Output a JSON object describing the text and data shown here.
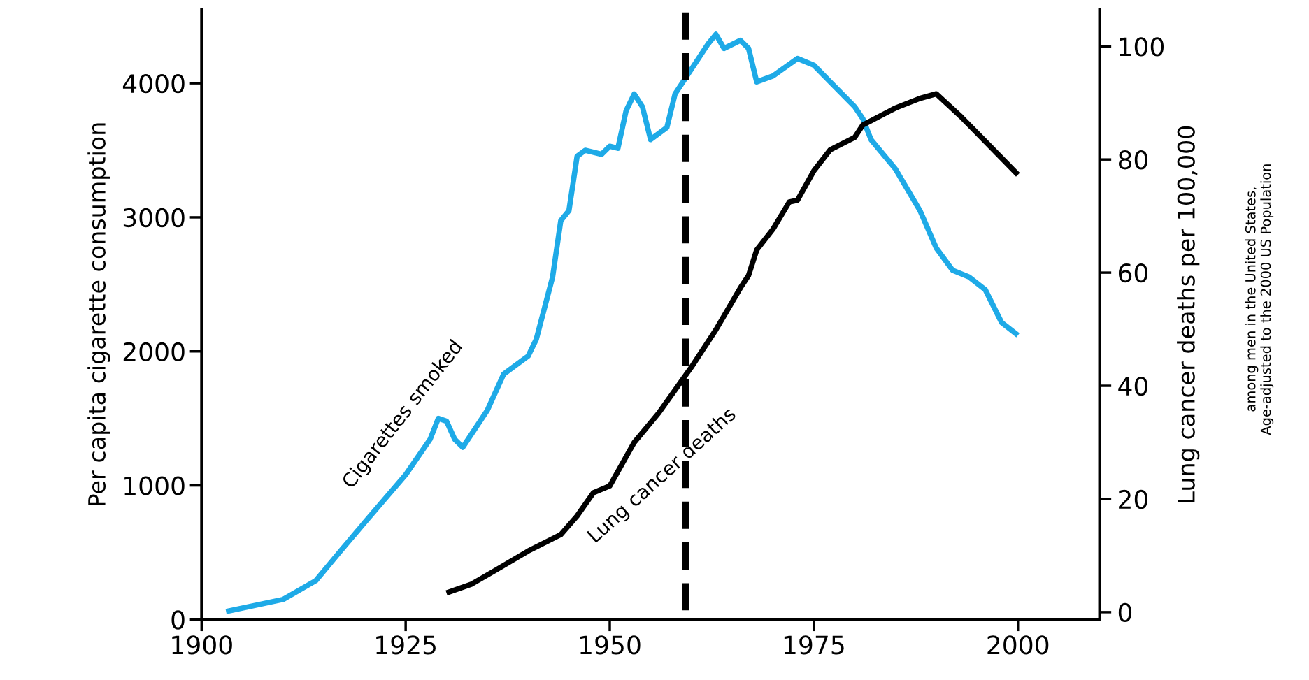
{
  "chart_data": {
    "type": "line",
    "xlabel": null,
    "ylabel": "Per capita cigarette consumption",
    "y2label": "Lung cancer deaths per 100,000",
    "annotations": [
      "Cigarettes smoked",
      "Lung cancer deaths",
      "among men in the United States,\nAge-adjusted to the 2000 US Population"
    ],
    "xlim": [
      1900,
      2010
    ],
    "ylim": [
      0,
      4550
    ],
    "y2lim": [
      -1.3,
      106.5
    ],
    "xticks": [
      1900,
      1925,
      1950,
      1975,
      2000
    ],
    "yticks": [
      0,
      1000,
      2000,
      3000,
      4000
    ],
    "y2ticks": [
      0,
      20,
      40,
      60,
      80,
      100
    ],
    "grid": false,
    "marker": "none",
    "line_style": "solid",
    "ref_lines": [
      {
        "axis": "x",
        "value": 1959.3,
        "label": null,
        "color": "#000000",
        "line_style": "dashed"
      }
    ],
    "series": [
      {
        "color": "#1eaae7",
        "x": [
          1903,
          1910,
          1914,
          1917,
          1920,
          1925,
          1928,
          1929,
          1930,
          1931,
          1932,
          1935,
          1937,
          1940,
          1941,
          1943,
          1944,
          1945,
          1946,
          1947,
          1949,
          1950,
          1951,
          1952,
          1953,
          1954,
          1955,
          1957,
          1958,
          1960,
          1962,
          1963,
          1964,
          1966,
          1967,
          1968,
          1970,
          1973,
          1975,
          1977,
          1980,
          1981,
          1982,
          1985,
          1988,
          1990,
          1992,
          1994,
          1996,
          1998,
          2000
        ],
        "values": [
          60,
          150,
          290,
          510,
          725,
          1080,
          1345,
          1500,
          1480,
          1345,
          1285,
          1560,
          1830,
          1965,
          2090,
          2555,
          2975,
          3050,
          3455,
          3500,
          3470,
          3530,
          3515,
          3795,
          3920,
          3825,
          3580,
          3670,
          3920,
          4105,
          4290,
          4365,
          4260,
          4320,
          4260,
          4010,
          4055,
          4185,
          4135,
          4010,
          3825,
          3735,
          3580,
          3360,
          3050,
          2770,
          2605,
          2555,
          2460,
          2215,
          2120
        ]
      },
      {
        "color": "#000000",
        "axis": "y2",
        "x": [
          1930,
          1933,
          1936,
          1940,
          1944,
          1946,
          1948,
          1950,
          1953,
          1956,
          1960,
          1963,
          1966,
          1967,
          1968,
          1970,
          1972,
          1973,
          1975,
          1977,
          1980,
          1981,
          1985,
          1988,
          1990,
          1993,
          1996,
          2000
        ],
        "values": [
          3.4,
          4.9,
          7.4,
          10.8,
          13.7,
          17,
          21.1,
          22.3,
          30,
          35.2,
          43.3,
          49.9,
          57.3,
          59.5,
          64,
          67.7,
          72.5,
          72.8,
          78,
          81.7,
          83.9,
          86.1,
          89.1,
          90.8,
          91.6,
          87.6,
          83.2,
          77.3
        ]
      }
    ]
  }
}
